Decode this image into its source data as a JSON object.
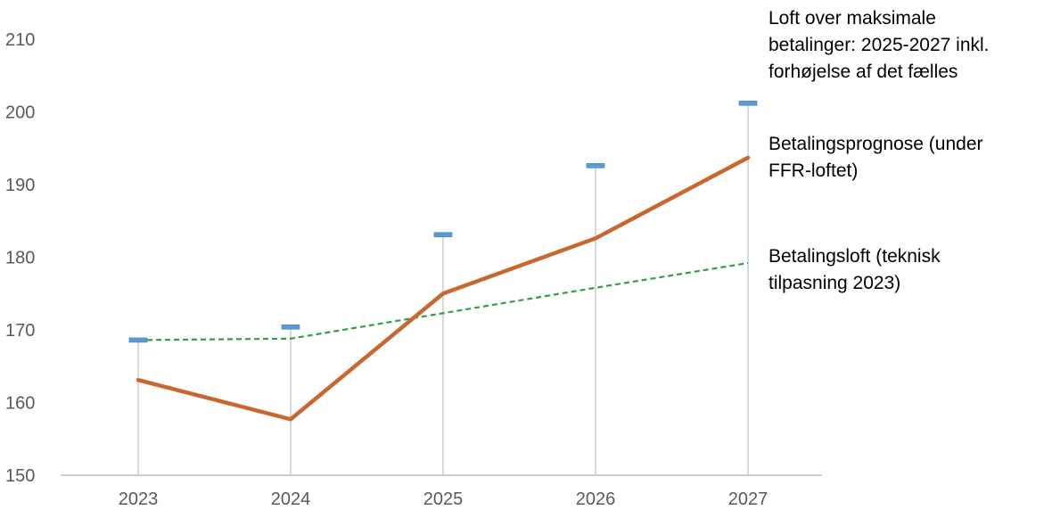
{
  "chart_data": {
    "type": "line",
    "title": "",
    "xlabel": "",
    "ylabel": "",
    "x": [
      "2023",
      "2024",
      "2025",
      "2026",
      "2027"
    ],
    "ylim": [
      150,
      210
    ],
    "yticks": [
      150,
      160,
      170,
      180,
      190,
      200,
      210
    ],
    "grid": false,
    "colors": {
      "forecast": "#C8682E",
      "ceiling": "#2E9E4F",
      "max_marker": "#5B9BD5",
      "droplines": "#D9D9D9",
      "axis": "#BFBFBF"
    },
    "series": [
      {
        "key": "forecast",
        "name_lines": [
          "Betalingsprognose (under",
          "FFR-loftet)"
        ],
        "style": "solid",
        "values": [
          163.1,
          157.7,
          175.0,
          182.6,
          193.7
        ]
      },
      {
        "key": "ceiling",
        "name_lines": [
          "Betalingsloft (teknisk",
          "tilpasning 2023)"
        ],
        "style": "dashed",
        "values": [
          168.6,
          168.8,
          172.3,
          175.8,
          179.2
        ]
      },
      {
        "key": "max_marker",
        "name_lines": [
          "Loft over maksimale",
          "betalinger: 2025-2027 inkl.",
          "forhøjelse af det fælles"
        ],
        "style": "marker",
        "values": [
          168.6,
          170.4,
          183.1,
          192.6,
          201.2
        ]
      }
    ]
  }
}
